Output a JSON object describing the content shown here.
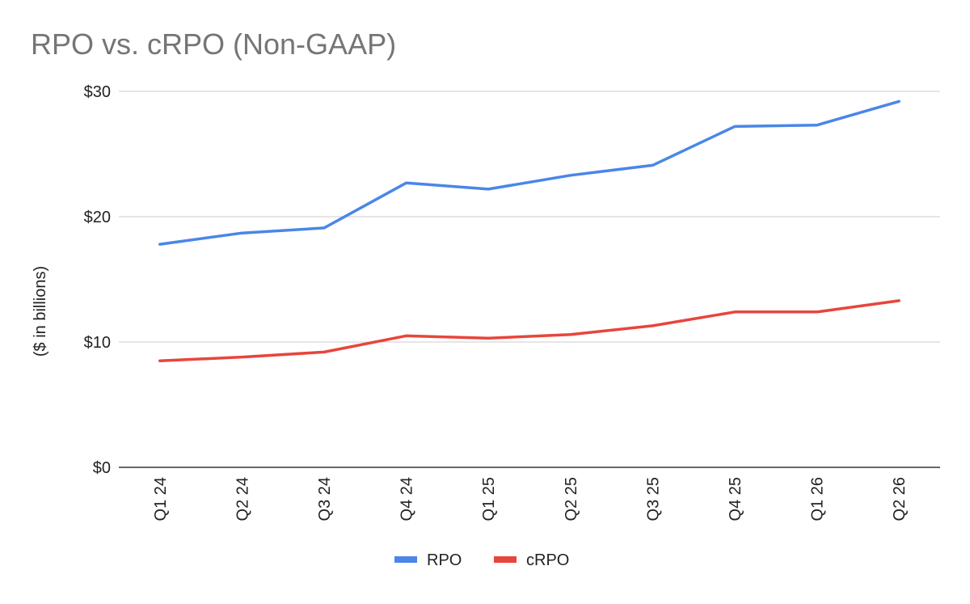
{
  "chart_data": {
    "type": "line",
    "title": "RPO vs. cRPO (Non-GAAP)",
    "xlabel": "",
    "ylabel": "($ in billions)",
    "categories": [
      "Q1 24",
      "Q2 24",
      "Q3 24",
      "Q4 24",
      "Q1 25",
      "Q2 25",
      "Q3 25",
      "Q4 25",
      "Q1 26",
      "Q2 26"
    ],
    "ylim": [
      0,
      30
    ],
    "yticks": [
      0,
      10,
      20,
      30
    ],
    "ytick_labels": [
      "$0",
      "$10",
      "$20",
      "$30"
    ],
    "grid": true,
    "legend_position": "bottom",
    "series": [
      {
        "name": "RPO",
        "color": "#4a86e8",
        "values": [
          17.8,
          18.7,
          19.1,
          22.7,
          22.2,
          23.3,
          24.1,
          27.2,
          27.3,
          29.2
        ]
      },
      {
        "name": "cRPO",
        "color": "#e8453c",
        "values": [
          8.5,
          8.8,
          9.2,
          10.5,
          10.3,
          10.6,
          11.3,
          12.4,
          12.4,
          13.3
        ]
      }
    ]
  }
}
